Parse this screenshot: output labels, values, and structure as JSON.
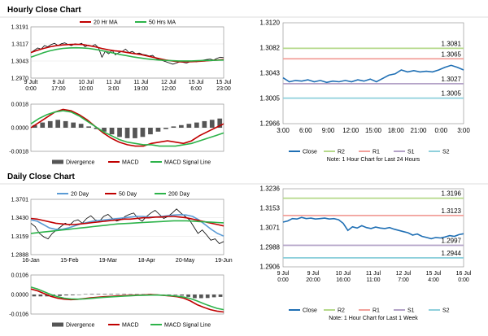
{
  "sections": {
    "hourly_title": "Hourly Close Chart",
    "daily_title": "Daily Close Chart"
  },
  "colors": {
    "price": "#000000",
    "ma_fast": "#c00000",
    "ma_slow": "#2db34a",
    "ma_long": "#2db34a",
    "ma_20d": "#5b9bd5",
    "macd": "#c00000",
    "signal": "#2db34a",
    "divergence": "#555555",
    "close": "#1f6fb4",
    "r2": "#b5d98a",
    "r1": "#f2a09a",
    "s1": "#b3a2c7",
    "s2": "#8fd0dc"
  },
  "chart_data": [
    {
      "id": "hourly_price",
      "type": "line",
      "legend": [
        "20 Hr MA",
        "50 Hrs MA"
      ],
      "y_ticks": [
        "1.3191",
        "1.3117",
        "1.3043",
        "1.2970"
      ],
      "ylim": [
        1.297,
        1.3191
      ],
      "x_ticks": [
        [
          "9 Jult",
          "0:00"
        ],
        [
          "9 Jul",
          "17:00"
        ],
        [
          "10 Jul",
          "10:00"
        ],
        [
          "11 Jul",
          "3:00"
        ],
        [
          "11 Jul",
          "19:00"
        ],
        [
          "12 Jul",
          "12:00"
        ],
        [
          "15 Jul",
          "6:00"
        ],
        [
          "15 Jul",
          "23:00"
        ]
      ],
      "series": [
        {
          "role": "price",
          "values": [
            1.308,
            1.309,
            1.31,
            1.3095,
            1.311,
            1.3105,
            1.3115,
            1.312,
            1.311,
            1.3118,
            1.3122,
            1.3115,
            1.311,
            1.3118,
            1.3115,
            1.312,
            1.3105,
            1.3112,
            1.3108,
            1.3115,
            1.31,
            1.306,
            1.3085,
            1.3075,
            1.309,
            1.307,
            1.308,
            1.3085,
            1.3095,
            1.308,
            1.3085,
            1.3075,
            1.3078,
            1.3072,
            1.307,
            1.3065,
            1.3068,
            1.3055,
            1.305,
            1.3045,
            1.304,
            1.3035,
            1.303,
            1.3035,
            1.304,
            1.3038,
            1.3035,
            1.304,
            1.3042,
            1.304,
            1.3045,
            1.3048,
            1.305,
            1.3052,
            1.3048,
            1.3055,
            1.306,
            1.3058
          ]
        },
        {
          "role": "ma_fast",
          "name": "20 Hr MA",
          "values": [
            1.308,
            1.309,
            1.3098,
            1.3105,
            1.311,
            1.3113,
            1.3115,
            1.3116,
            1.3115,
            1.311,
            1.3105,
            1.3098,
            1.3092,
            1.3088,
            1.3085,
            1.308,
            1.3076,
            1.3072,
            1.3066,
            1.306,
            1.3054,
            1.3048,
            1.3044,
            1.304,
            1.304,
            1.3041,
            1.3042,
            1.3044,
            1.3046,
            1.3048,
            1.305
          ]
        },
        {
          "role": "ma_slow",
          "name": "50 Hrs MA",
          "values": [
            1.306,
            1.307,
            1.308,
            1.3088,
            1.3094,
            1.3098,
            1.31,
            1.3101,
            1.31,
            1.3098,
            1.3094,
            1.3089,
            1.3083,
            1.3077,
            1.3071,
            1.3066,
            1.3061,
            1.3057,
            1.3053,
            1.305,
            1.3048,
            1.3046,
            1.3045,
            1.3044,
            1.3044,
            1.3044,
            1.3045,
            1.3046,
            1.3046,
            1.3047,
            1.3048
          ]
        }
      ]
    },
    {
      "id": "hourly_macd",
      "type": "line",
      "y_ticks": [
        "0.0018",
        "0.0000",
        "-0.0018"
      ],
      "ylim": [
        -0.0018,
        0.0018
      ],
      "legend": [
        "Divergence",
        "MACD",
        "MACD Signal Line"
      ],
      "series": [
        {
          "role": "macd",
          "name": "MACD",
          "values": [
            0.0,
            0.0004,
            0.0008,
            0.0012,
            0.0014,
            0.0013,
            0.001,
            0.0006,
            0.0001,
            -0.0004,
            -0.0008,
            -0.0011,
            -0.0013,
            -0.0014,
            -0.0014,
            -0.0012,
            -0.0011,
            -0.001,
            -0.0011,
            -0.0012,
            -0.001,
            -0.0006,
            -0.0003,
            0.0,
            0.0003
          ]
        },
        {
          "role": "signal",
          "name": "MACD Signal Line",
          "values": [
            0.0003,
            0.0007,
            0.001,
            0.0012,
            0.0013,
            0.0012,
            0.0009,
            0.0005,
            0.0001,
            -0.0003,
            -0.0006,
            -0.0009,
            -0.0011,
            -0.0012,
            -0.0013,
            -0.0013,
            -0.0014,
            -0.0014,
            -0.0014,
            -0.0013,
            -0.0012,
            -0.001,
            -0.0008,
            -0.0006,
            -0.0004
          ]
        },
        {
          "role": "divergence",
          "name": "Divergence",
          "values": [
            0.0002,
            0.0004,
            0.0005,
            0.0006,
            0.0005,
            0.0004,
            0.0003,
            0.0001,
            -0.0001,
            -0.0003,
            -0.0005,
            -0.0007,
            -0.0008,
            -0.0008,
            -0.0007,
            -0.0005,
            -0.0003,
            -0.0001,
            0.0001,
            0.0002,
            0.0003,
            0.0004,
            0.0005,
            0.0006,
            0.0007
          ]
        }
      ]
    },
    {
      "id": "hourly_24h",
      "type": "line",
      "y_ticks": [
        "1.3120",
        "1.3082",
        "1.3043",
        "1.3005",
        "1.2966"
      ],
      "ylim": [
        1.2966,
        1.312
      ],
      "x_ticks": [
        "3:00",
        "6:00",
        "9:00",
        "12:00",
        "15:00",
        "18:00",
        "21:00",
        "0:00",
        "3:00"
      ],
      "levels": [
        {
          "name": "R2",
          "value": 1.3081,
          "label": "1.3081"
        },
        {
          "name": "R1",
          "value": 1.3065,
          "label": "1.3065"
        },
        {
          "name": "S1",
          "value": 1.3027,
          "label": "1.3027"
        },
        {
          "name": "S2",
          "value": 1.3005,
          "label": "1.3005"
        }
      ],
      "close": [
        1.3036,
        1.303,
        1.3032,
        1.3031,
        1.3033,
        1.303,
        1.3032,
        1.3029,
        1.3031,
        1.303,
        1.3032,
        1.303,
        1.3033,
        1.3031,
        1.3034,
        1.303,
        1.3035,
        1.304,
        1.3042,
        1.3048,
        1.3045,
        1.3047,
        1.3045,
        1.3046,
        1.3045,
        1.3048,
        1.3052,
        1.3055,
        1.3052,
        1.3048
      ],
      "legend": [
        "Close",
        "R2",
        "R1",
        "S1",
        "S2"
      ],
      "note": "Note: 1 Hour Chart for Last 24 Hours"
    },
    {
      "id": "daily_price",
      "type": "line",
      "legend": [
        "20 Day",
        "50 Day",
        "200 Day"
      ],
      "y_ticks": [
        "1.3701",
        "1.3430",
        "1.3159",
        "1.2888"
      ],
      "ylim": [
        1.2888,
        1.3701
      ],
      "x_ticks": [
        "16-Jan",
        "15-Feb",
        "19-Mar",
        "18-Apr",
        "20-May",
        "19-Jun"
      ],
      "series": [
        {
          "role": "price",
          "values": [
            1.335,
            1.33,
            1.32,
            1.315,
            1.312,
            1.32,
            1.325,
            1.33,
            1.335,
            1.332,
            1.338,
            1.34,
            1.335,
            1.342,
            1.346,
            1.34,
            1.338,
            1.345,
            1.348,
            1.342,
            1.338,
            1.34,
            1.345,
            1.348,
            1.35,
            1.342,
            1.338,
            1.345,
            1.35,
            1.354,
            1.348,
            1.342,
            1.345,
            1.35,
            1.356,
            1.35,
            1.345,
            1.34,
            1.33,
            1.32,
            1.325,
            1.318,
            1.31,
            1.312,
            1.305,
            1.308
          ]
        },
        {
          "role": "ma_20d",
          "name": "20 Day",
          "values": [
            1.34,
            1.338,
            1.333,
            1.328,
            1.326,
            1.326,
            1.328,
            1.331,
            1.334,
            1.336,
            1.338,
            1.339,
            1.34,
            1.341,
            1.342,
            1.343,
            1.344,
            1.345,
            1.345,
            1.344,
            1.344,
            1.345,
            1.346,
            1.347,
            1.3475,
            1.347,
            1.345,
            1.34,
            1.333,
            1.326,
            1.32,
            1.316
          ]
        },
        {
          "role": "ma_fast",
          "name": "50 Day",
          "values": [
            1.342,
            1.341,
            1.339,
            1.337,
            1.335,
            1.334,
            1.333,
            1.333,
            1.334,
            1.335,
            1.336,
            1.337,
            1.338,
            1.339,
            1.34,
            1.341,
            1.341,
            1.342,
            1.343,
            1.343,
            1.344,
            1.344,
            1.345,
            1.345,
            1.344,
            1.343,
            1.341,
            1.339,
            1.337,
            1.335,
            1.333,
            1.331
          ]
        },
        {
          "role": "ma_long",
          "name": "200 Day",
          "values": [
            1.32,
            1.321,
            1.322,
            1.323,
            1.324,
            1.325,
            1.326,
            1.327,
            1.328,
            1.329,
            1.33,
            1.331,
            1.332,
            1.333,
            1.334,
            1.3345,
            1.335,
            1.3355,
            1.336,
            1.3365,
            1.337,
            1.3375,
            1.338,
            1.3385,
            1.3385,
            1.3385,
            1.338,
            1.3375,
            1.337,
            1.3365,
            1.336,
            1.3355
          ]
        }
      ]
    },
    {
      "id": "daily_macd",
      "type": "line",
      "y_ticks": [
        "0.0106",
        "0.0000",
        "-0.0106"
      ],
      "ylim": [
        -0.0106,
        0.0106
      ],
      "legend": [
        "Divergence",
        "MACD",
        "MACD Signal Line"
      ],
      "series": [
        {
          "role": "macd",
          "name": "MACD",
          "values": [
            0.003,
            0.002,
            0.0005,
            -0.001,
            -0.002,
            -0.0025,
            -0.0028,
            -0.0026,
            -0.0022,
            -0.0018,
            -0.0015,
            -0.0012,
            -0.001,
            -0.0008,
            -0.0006,
            -0.0005,
            -0.0003,
            -0.0002,
            0.0,
            -0.0002,
            -0.0005,
            -0.0008,
            -0.0012,
            -0.002,
            -0.0035,
            -0.0055,
            -0.007,
            -0.0082,
            -0.009,
            -0.0095
          ]
        },
        {
          "role": "signal",
          "name": "MACD Signal Line",
          "values": [
            0.004,
            0.003,
            0.0015,
            0.0,
            -0.0012,
            -0.002,
            -0.0024,
            -0.0025,
            -0.0024,
            -0.0021,
            -0.0018,
            -0.0015,
            -0.0013,
            -0.0011,
            -0.0009,
            -0.0007,
            -0.0005,
            -0.0004,
            -0.0003,
            -0.0003,
            -0.0004,
            -0.0006,
            -0.0009,
            -0.0014,
            -0.0022,
            -0.0035,
            -0.005,
            -0.0063,
            -0.0075,
            -0.0082
          ]
        },
        {
          "role": "divergence",
          "name": "Divergence",
          "values": [
            -0.001,
            -0.001,
            -0.001,
            -0.001,
            -0.0008,
            -0.0005,
            -0.0004,
            -0.0001,
            0.0002,
            0.0003,
            0.0003,
            0.0003,
            0.0003,
            0.0003,
            0.0003,
            0.0002,
            0.0002,
            0.0002,
            0.0003,
            0.0001,
            -0.0001,
            -0.0002,
            -0.0003,
            -0.0006,
            -0.0013,
            -0.002,
            -0.002,
            -0.0019,
            -0.0015,
            -0.0013
          ]
        }
      ]
    },
    {
      "id": "daily_week",
      "type": "line",
      "y_ticks": [
        "1.3236",
        "1.3153",
        "1.3071",
        "1.2988",
        "1.2906"
      ],
      "ylim": [
        1.2906,
        1.3236
      ],
      "x_ticks": [
        [
          "9 Jul",
          "0:00"
        ],
        [
          "9 Jul",
          "20:00"
        ],
        [
          "10 Jul",
          "16:00"
        ],
        [
          "11 Jul",
          "11:00"
        ],
        [
          "12 Jul",
          "7:00"
        ],
        [
          "15 Jul",
          "4:00"
        ],
        [
          "16 Jul",
          "0:00"
        ]
      ],
      "levels": [
        {
          "name": "R2",
          "value": 1.3196,
          "label": "1.3196"
        },
        {
          "name": "R1",
          "value": 1.3123,
          "label": "1.3123"
        },
        {
          "name": "S1",
          "value": 1.2997,
          "label": "1.2997"
        },
        {
          "name": "S2",
          "value": 1.2944,
          "label": "1.2944"
        }
      ],
      "close": [
        1.3095,
        1.31,
        1.311,
        1.3108,
        1.3115,
        1.311,
        1.3112,
        1.3108,
        1.311,
        1.3112,
        1.3108,
        1.311,
        1.3105,
        1.309,
        1.306,
        1.3075,
        1.307,
        1.308,
        1.3072,
        1.3068,
        1.3074,
        1.307,
        1.3068,
        1.3072,
        1.3065,
        1.306,
        1.3055,
        1.305,
        1.304,
        1.3045,
        1.3035,
        1.303,
        1.3025,
        1.303,
        1.3028,
        1.3032,
        1.3038,
        1.3035,
        1.3042,
        1.3046
      ],
      "legend": [
        "Close",
        "R2",
        "R1",
        "S1",
        "S2"
      ],
      "note": "Note: 1 Hour Chart for Last 1 Week"
    }
  ]
}
